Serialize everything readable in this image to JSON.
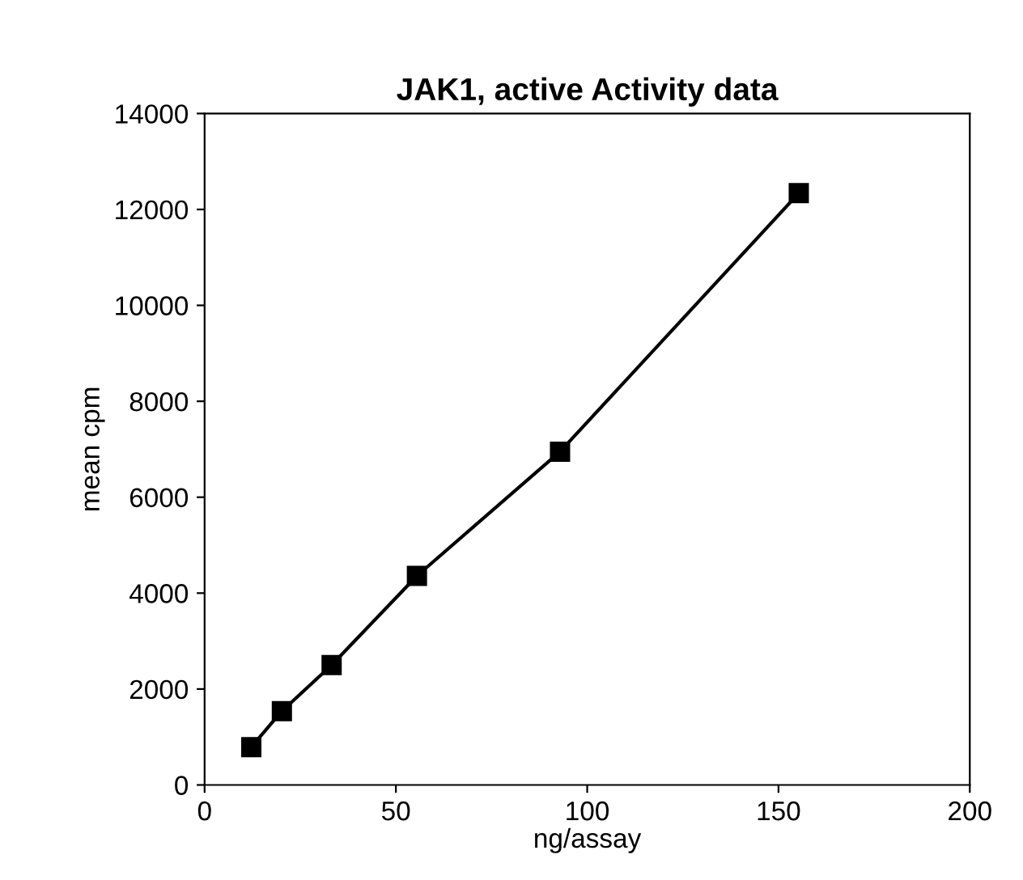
{
  "chart_data": {
    "type": "line",
    "title": "JAK1, active Activity data",
    "xlabel": "ng/assay",
    "ylabel": "mean cpm",
    "x": [
      12.2,
      20.2,
      33.2,
      55.5,
      92.9,
      155.3
    ],
    "series": [
      {
        "color": "#000000",
        "values": [
          790,
          1540,
          2500,
          4360,
          6950,
          12340
        ]
      }
    ],
    "xlim": [
      0,
      200
    ],
    "xticks": [
      0,
      50,
      100,
      150,
      200
    ],
    "ylim": [
      0,
      14000
    ],
    "yticks": [
      0,
      2000,
      4000,
      6000,
      8000,
      10000,
      12000,
      14000
    ],
    "marker": "square",
    "line_style": "solid",
    "grid": false,
    "legend": false
  }
}
